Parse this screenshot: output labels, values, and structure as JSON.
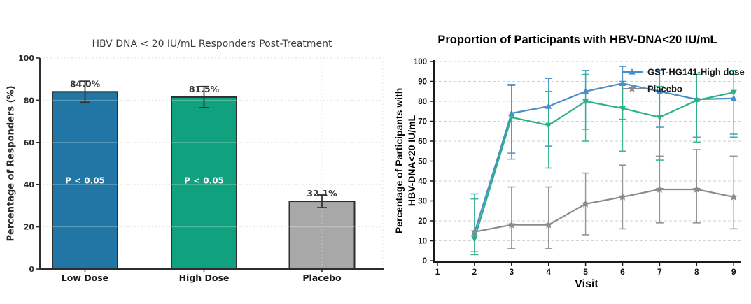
{
  "page": {
    "background": "#ffffff"
  },
  "chart_data": [
    {
      "type": "bar",
      "title": "HBV DNA < 20 IU/mL Responders Post-Treatment",
      "ylabel": "Percentage of Responders (%)",
      "xlabel": "",
      "ylim": [
        0,
        100
      ],
      "yticks": [
        0,
        20,
        40,
        60,
        80,
        100
      ],
      "categories": [
        "Low Dose",
        "High Dose",
        "Placebo"
      ],
      "values": [
        84.0,
        81.5,
        32.1
      ],
      "value_labels": [
        "84.0%",
        "81.5%",
        "32.1%"
      ],
      "error_bars": [
        5.0,
        5.0,
        3.0
      ],
      "bar_colors": [
        "#2176a5",
        "#10a17e",
        "#a8a8a8"
      ],
      "bar_edge_color": "#2e2e2e",
      "grid": true,
      "annotations": [
        {
          "bar_index": 0,
          "text": "P < 0.05",
          "y": 40.5,
          "color": "#ffffff"
        },
        {
          "bar_index": 1,
          "text": "P < 0.05",
          "y": 40.5,
          "color": "#ffffff"
        }
      ]
    },
    {
      "type": "line",
      "title": "Proportion of Participants with HBV-DNA<20 IU/mL",
      "xlabel": "Visit",
      "ylabel_lines": [
        "Percentage of Participants with",
        "HBV-DNA<20 IU/mL"
      ],
      "xlim": [
        1,
        9
      ],
      "xticks": [
        1,
        2,
        3,
        4,
        5,
        6,
        7,
        8,
        9
      ],
      "ylim": [
        0,
        100
      ],
      "yticks": [
        0,
        10,
        20,
        30,
        40,
        50,
        60,
        70,
        80,
        90,
        100
      ],
      "grid": true,
      "x": [
        2,
        3,
        4,
        5,
        6,
        7,
        8,
        9
      ],
      "series": [
        {
          "name": "GST-HG141-High dose",
          "color": "#4a8fc7",
          "marker": "triangle-up",
          "in_legend": true,
          "values": [
            14,
            74,
            77.5,
            85,
            89,
            85,
            81,
            81.5
          ],
          "err_low": [
            4.5,
            54,
            57.5,
            66,
            71,
            67,
            62,
            62
          ],
          "err_high": [
            33.5,
            88.5,
            91.5,
            95.5,
            97.5,
            95.5,
            93.5,
            93.5
          ]
        },
        {
          "name": "",
          "color": "#2bb286",
          "marker": "triangle-down",
          "in_legend": false,
          "values": [
            11,
            72,
            68,
            80,
            76.5,
            72,
            80.5,
            84.5
          ],
          "err_low": [
            3,
            51,
            46.5,
            60,
            55,
            50.5,
            59.5,
            63.5
          ],
          "err_high": [
            31,
            88,
            85,
            93.5,
            90,
            87.5,
            93.5,
            95.5
          ]
        },
        {
          "name": "Placebo",
          "color": "#8a8a8a",
          "marker": "star",
          "in_legend": true,
          "values": [
            14.5,
            18,
            18,
            28.5,
            32,
            35.8,
            35.8,
            32
          ],
          "err_low": [
            null,
            6,
            6,
            13,
            16,
            19,
            19,
            16
          ],
          "err_high": [
            null,
            37,
            37,
            44,
            48,
            52.5,
            55.8,
            52.5
          ]
        }
      ],
      "legend": {
        "labels": [
          "GST-HG141-High dose",
          "Placebo"
        ],
        "position": "upper-right"
      }
    }
  ]
}
